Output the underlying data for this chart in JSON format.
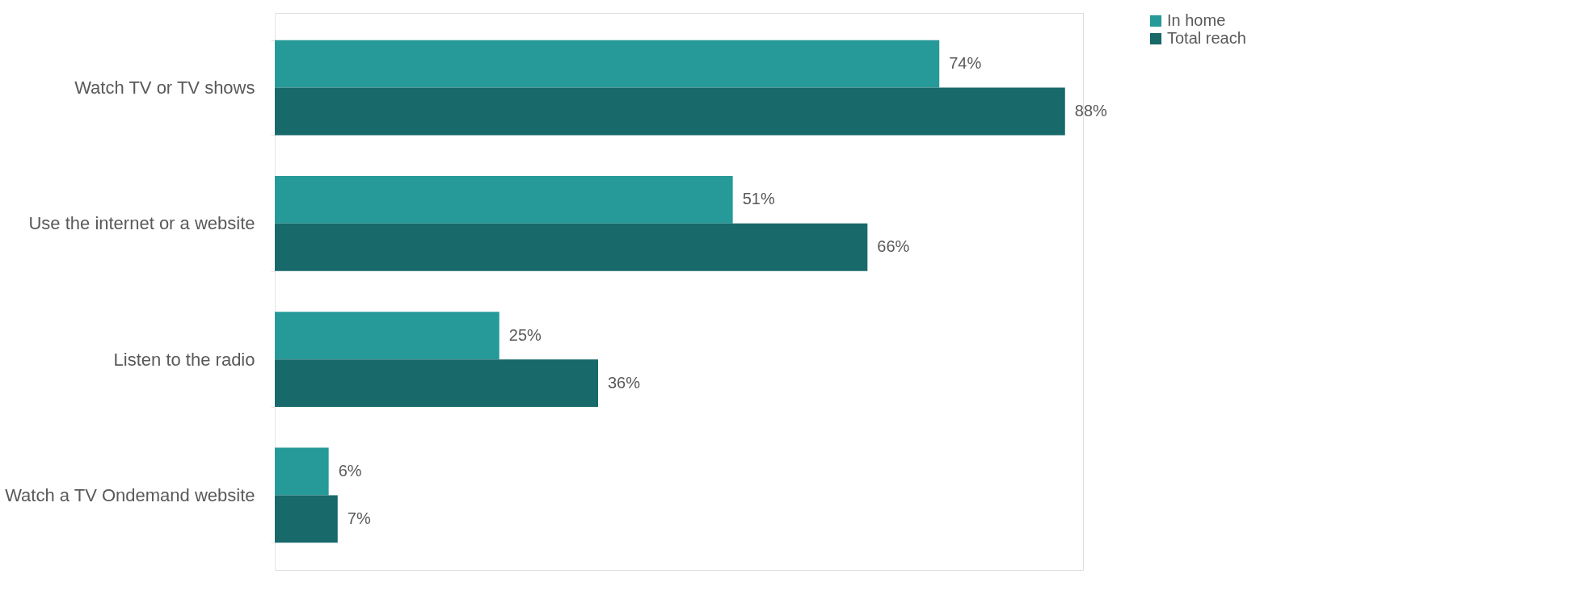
{
  "chart_data": {
    "type": "bar",
    "orientation": "horizontal",
    "categories": [
      "Watch TV or TV shows",
      "Use the internet or a website",
      "Listen to the radio",
      "Watch a TV Ondemand website"
    ],
    "series": [
      {
        "name": "In home",
        "color": "#269a98",
        "values": [
          74,
          51,
          25,
          6
        ],
        "value_labels": [
          "74%",
          "51%",
          "25%",
          "6%"
        ]
      },
      {
        "name": "Total reach",
        "color": "#17696a",
        "values": [
          88,
          66,
          36,
          7
        ],
        "value_labels": [
          "88%",
          "66%",
          "36%",
          "7%"
        ]
      }
    ],
    "legend": "right",
    "grid": false
  }
}
